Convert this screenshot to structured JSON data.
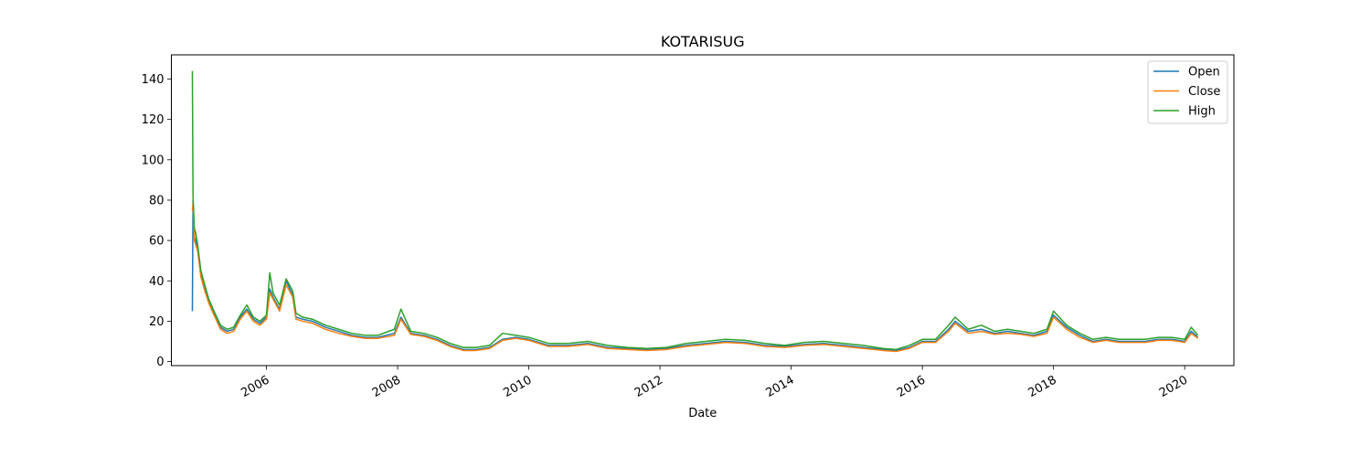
{
  "chart_data": {
    "type": "line",
    "title": "KOTARISUG",
    "xlabel": "Date",
    "ylabel": "",
    "xlim": [
      2004.55,
      2020.75
    ],
    "ylim": [
      -2,
      152
    ],
    "x_ticks": [
      2006,
      2008,
      2010,
      2012,
      2014,
      2016,
      2018,
      2020
    ],
    "x_tick_labels": [
      "2006",
      "2008",
      "2010",
      "2012",
      "2014",
      "2016",
      "2018",
      "2020"
    ],
    "y_ticks": [
      0,
      20,
      40,
      60,
      80,
      100,
      120,
      140
    ],
    "y_tick_labels": [
      "0",
      "20",
      "40",
      "60",
      "80",
      "100",
      "120",
      "140"
    ],
    "grid": false,
    "legend_position": "top-right",
    "colors": {
      "Open": "#1f77b4",
      "Close": "#ff7f0e",
      "High": "#2ca02c"
    },
    "x": [
      2004.87,
      2004.88,
      2004.9,
      2004.92,
      2004.95,
      2005.0,
      2005.05,
      2005.12,
      2005.2,
      2005.3,
      2005.4,
      2005.5,
      2005.6,
      2005.7,
      2005.8,
      2005.9,
      2006.0,
      2006.05,
      2006.1,
      2006.2,
      2006.3,
      2006.4,
      2006.45,
      2006.55,
      2006.7,
      2006.9,
      2007.1,
      2007.3,
      2007.5,
      2007.7,
      2007.95,
      2008.05,
      2008.2,
      2008.4,
      2008.6,
      2008.8,
      2009.0,
      2009.2,
      2009.4,
      2009.6,
      2009.8,
      2010.0,
      2010.3,
      2010.6,
      2010.9,
      2011.2,
      2011.5,
      2011.8,
      2012.1,
      2012.4,
      2012.7,
      2013.0,
      2013.3,
      2013.6,
      2013.9,
      2014.2,
      2014.5,
      2014.8,
      2015.1,
      2015.4,
      2015.6,
      2015.8,
      2016.0,
      2016.2,
      2016.4,
      2016.5,
      2016.7,
      2016.9,
      2017.1,
      2017.3,
      2017.5,
      2017.7,
      2017.9,
      2018.0,
      2018.2,
      2018.4,
      2018.6,
      2018.8,
      2019.0,
      2019.2,
      2019.4,
      2019.6,
      2019.8,
      2020.0,
      2020.1,
      2020.2
    ],
    "series": [
      {
        "name": "Open",
        "values": [
          25,
          80,
          62,
          60,
          56,
          44,
          38,
          30,
          24,
          17,
          15,
          16,
          22,
          26,
          21,
          19,
          22,
          36,
          32,
          26,
          40,
          33,
          22,
          21,
          20,
          17,
          15,
          13,
          12,
          12,
          14,
          22,
          14,
          13,
          11,
          8,
          6,
          6,
          7,
          11,
          12,
          11,
          8,
          8,
          9,
          7,
          6.5,
          6,
          6.5,
          8,
          9,
          10,
          9.5,
          8,
          7.5,
          8.5,
          9,
          8,
          7,
          6,
          5.5,
          7,
          10,
          10,
          16,
          20,
          15,
          16,
          14,
          15,
          14,
          13,
          15,
          23,
          17,
          13,
          10,
          11,
          10,
          10,
          10,
          11,
          11,
          10,
          15,
          12
        ]
      },
      {
        "name": "Close",
        "values": [
          75,
          78,
          60,
          58,
          55,
          42,
          36,
          29,
          23,
          16,
          14,
          15,
          21,
          25,
          20,
          18,
          21,
          34,
          31,
          25,
          38,
          32,
          21,
          20,
          19,
          16,
          14,
          12.5,
          11.5,
          11.5,
          13,
          21,
          13.5,
          12.5,
          10.5,
          7.5,
          5.5,
          5.5,
          6.5,
          10.5,
          11.5,
          10.5,
          7.5,
          7.5,
          8.5,
          6.5,
          6,
          5.5,
          6,
          7.5,
          8.5,
          9.5,
          9,
          7.5,
          7,
          8,
          8.5,
          7.5,
          6.5,
          5.5,
          5,
          6.5,
          9.5,
          9.5,
          15,
          19,
          14,
          15,
          13.5,
          14,
          13.5,
          12.5,
          14,
          22,
          16,
          12,
          9.5,
          10.5,
          9.5,
          9.5,
          9.5,
          10.5,
          10.5,
          9.5,
          14,
          11.5
        ]
      },
      {
        "name": "High",
        "values": [
          144,
          82,
          66,
          64,
          58,
          45,
          39,
          31,
          25,
          18,
          16,
          17,
          23,
          28,
          22,
          20,
          23,
          44,
          34,
          28,
          41,
          35,
          24,
          22,
          21,
          18,
          16,
          14,
          13,
          13,
          16,
          26,
          15,
          14,
          12,
          9,
          7,
          7,
          8,
          14,
          13,
          12,
          9,
          9,
          10,
          8,
          7,
          6.5,
          7,
          9,
          10,
          11,
          10.5,
          9,
          8,
          9.5,
          10,
          9,
          8,
          6.5,
          6,
          8,
          11,
          11,
          18,
          22,
          16,
          18,
          15,
          16,
          15,
          14,
          16,
          25,
          18,
          14,
          11,
          12,
          11,
          11,
          11,
          12,
          12,
          11,
          17,
          13
        ]
      }
    ]
  }
}
